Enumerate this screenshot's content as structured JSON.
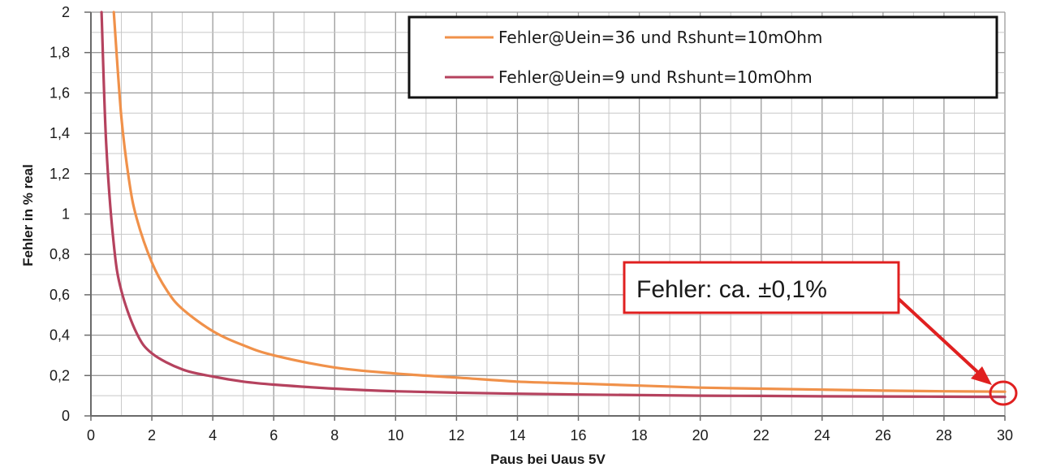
{
  "chart_data": {
    "type": "line",
    "title": "",
    "xlabel": "Paus bei Uaus 5V",
    "ylabel": "Fehler in % real",
    "xlim": [
      0,
      30
    ],
    "ylim": [
      0,
      2
    ],
    "x_ticks": [
      "0",
      "2",
      "4",
      "6",
      "8",
      "10",
      "12",
      "14",
      "16",
      "18",
      "20",
      "22",
      "24",
      "26",
      "28",
      "30"
    ],
    "y_ticks": [
      "0",
      "0,2",
      "0,4",
      "0,6",
      "0,8",
      "1",
      "1,2",
      "1,4",
      "1,6",
      "1,8",
      "2"
    ],
    "grid": true,
    "legend_position": "top-right",
    "series": [
      {
        "name": "Fehler@Uein=36 und Rshunt=10mOhm",
        "color": "#f0914a",
        "x": [
          0.75,
          1,
          1.25,
          1.5,
          2,
          2.5,
          3,
          4,
          5,
          6,
          8,
          10,
          12,
          14,
          16,
          18,
          20,
          22,
          24,
          26,
          28,
          30
        ],
        "y": [
          2.0,
          1.48,
          1.17,
          0.98,
          0.76,
          0.62,
          0.53,
          0.42,
          0.35,
          0.3,
          0.24,
          0.21,
          0.19,
          0.17,
          0.16,
          0.15,
          0.14,
          0.135,
          0.13,
          0.125,
          0.122,
          0.12
        ]
      },
      {
        "name": "Fehler@Uein=9 und Rshunt=10mOhm",
        "color": "#b5425e",
        "x": [
          0.35,
          0.5,
          0.75,
          1,
          1.5,
          2,
          3,
          4,
          5,
          6,
          8,
          10,
          12,
          14,
          16,
          18,
          20,
          22,
          24,
          26,
          28,
          30
        ],
        "y": [
          2.0,
          1.35,
          0.85,
          0.62,
          0.41,
          0.31,
          0.23,
          0.195,
          0.17,
          0.155,
          0.135,
          0.122,
          0.115,
          0.11,
          0.106,
          0.103,
          0.1,
          0.099,
          0.097,
          0.096,
          0.095,
          0.094
        ]
      }
    ],
    "annotation": {
      "text": "Fehler: ca. ±0,1%",
      "color": "#e02020",
      "target_x": 30,
      "target_y": 0.11
    }
  }
}
